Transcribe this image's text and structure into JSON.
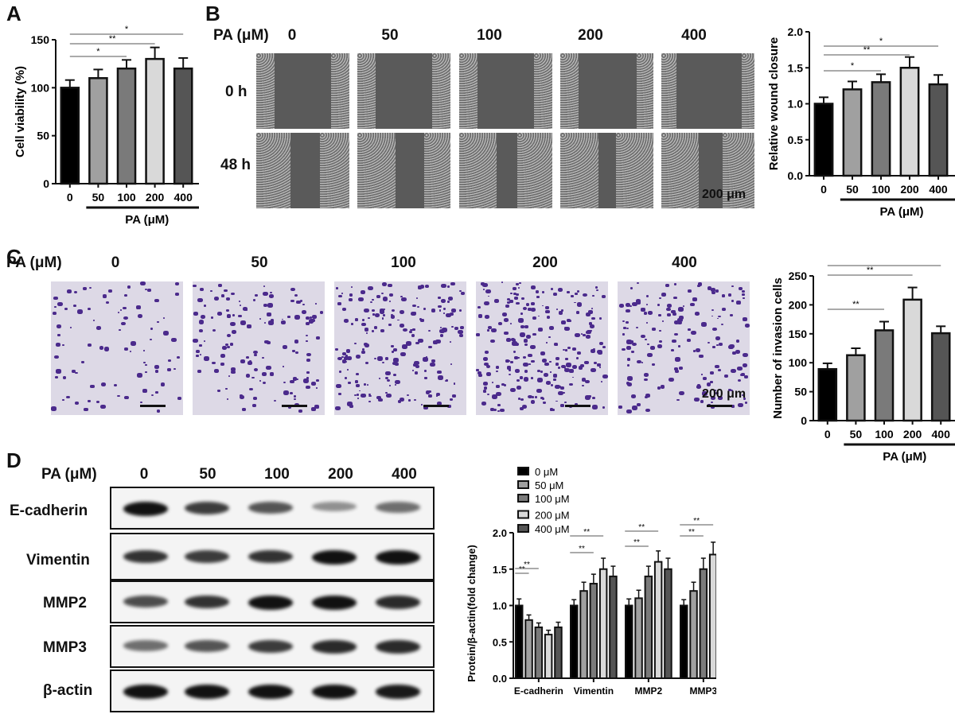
{
  "panels": {
    "A": {
      "label": "A"
    },
    "B": {
      "label": "B",
      "header": "PA (μM)",
      "concentrations": [
        "0",
        "50",
        "100",
        "200",
        "400"
      ],
      "rows": [
        "0 h",
        "48 h"
      ],
      "scale_bar": "200 μm"
    },
    "C": {
      "label": "C",
      "header": "PA (μM)",
      "concentrations": [
        "0",
        "50",
        "100",
        "200",
        "400"
      ],
      "scale_bar": "200 μm"
    },
    "D": {
      "label": "D",
      "header": "PA (μM)",
      "concentrations": [
        "0",
        "50",
        "100",
        "200",
        "400"
      ],
      "blot_rows": [
        "E-cadherin",
        "Vimentin",
        "MMP2",
        "MMP3",
        "β-actin"
      ]
    }
  },
  "chart_data": [
    {
      "id": "A",
      "type": "bar",
      "title": "",
      "categories": [
        "0",
        "50",
        "100",
        "200",
        "400"
      ],
      "values": [
        100,
        110,
        120,
        130,
        120
      ],
      "errors": [
        8,
        9,
        9,
        12,
        11
      ],
      "xlabel": "PA (μM)",
      "ylabel": "Cell viability (%)",
      "ylim": [
        0,
        150
      ],
      "yticks": [
        "0",
        "50",
        "100",
        "150"
      ],
      "bar_colors": [
        "#000000",
        "#a0a0a0",
        "#7a7a7a",
        "#d9d9d9",
        "#555555"
      ],
      "significance": [
        {
          "from": "0",
          "to": "100",
          "label": "*"
        },
        {
          "from": "0",
          "to": "200",
          "label": "**"
        },
        {
          "from": "0",
          "to": "400",
          "label": "*"
        }
      ]
    },
    {
      "id": "B",
      "type": "bar",
      "categories": [
        "0",
        "50",
        "100",
        "200",
        "400"
      ],
      "values": [
        1.0,
        1.2,
        1.3,
        1.5,
        1.27
      ],
      "errors": [
        0.09,
        0.11,
        0.11,
        0.15,
        0.13
      ],
      "xlabel": "PA (μM)",
      "ylabel": "Relative wound closure",
      "ylim": [
        0,
        2.0
      ],
      "yticks": [
        "0.0",
        "0.5",
        "1.0",
        "1.5",
        "2.0"
      ],
      "bar_colors": [
        "#000000",
        "#a0a0a0",
        "#7a7a7a",
        "#d9d9d9",
        "#555555"
      ],
      "significance": [
        {
          "from": "0",
          "to": "100",
          "label": "*"
        },
        {
          "from": "0",
          "to": "200",
          "label": "**"
        },
        {
          "from": "0",
          "to": "400",
          "label": "*"
        }
      ]
    },
    {
      "id": "C",
      "type": "bar",
      "categories": [
        "0",
        "50",
        "100",
        "200",
        "400"
      ],
      "values": [
        89,
        113,
        156,
        209,
        151
      ],
      "errors": [
        10,
        12,
        15,
        21,
        12
      ],
      "xlabel": "PA (μM)",
      "ylabel": "Number of invasion cells",
      "ylim": [
        0,
        250
      ],
      "yticks": [
        "0",
        "50",
        "100",
        "150",
        "200",
        "250"
      ],
      "bar_colors": [
        "#000000",
        "#a0a0a0",
        "#7a7a7a",
        "#d9d9d9",
        "#555555"
      ],
      "significance": [
        {
          "from": "0",
          "to": "100",
          "label": "**"
        },
        {
          "from": "0",
          "to": "200",
          "label": "**"
        },
        {
          "from": "0",
          "to": "400",
          "label": "**"
        }
      ]
    },
    {
      "id": "D",
      "type": "bar",
      "categories": [
        "E-cadherin",
        "Vimentin",
        "MMP2",
        "MMP3"
      ],
      "series": [
        {
          "name": "0 μM",
          "color": "#000000",
          "values": [
            1.0,
            1.0,
            1.0,
            1.0
          ],
          "errors": [
            0.09,
            0.08,
            0.09,
            0.08
          ]
        },
        {
          "name": "50 μM",
          "color": "#a0a0a0",
          "values": [
            0.8,
            1.2,
            1.1,
            1.2
          ],
          "errors": [
            0.07,
            0.12,
            0.11,
            0.12
          ]
        },
        {
          "name": "100 μM",
          "color": "#7a7a7a",
          "values": [
            0.7,
            1.3,
            1.4,
            1.5
          ],
          "errors": [
            0.06,
            0.13,
            0.14,
            0.15
          ]
        },
        {
          "name": "200 μM",
          "color": "#d9d9d9",
          "values": [
            0.6,
            1.5,
            1.6,
            1.7
          ],
          "errors": [
            0.06,
            0.15,
            0.15,
            0.17
          ]
        },
        {
          "name": "400 μM",
          "color": "#555555",
          "values": [
            0.7,
            1.4,
            1.5,
            1.6
          ],
          "errors": [
            0.07,
            0.14,
            0.15,
            0.15
          ]
        }
      ],
      "xlabel": "",
      "ylabel": "Protein/β-actin(fold change)",
      "ylim": [
        0,
        2.0
      ],
      "yticks": [
        "0.0",
        "0.5",
        "1.0",
        "1.5",
        "2.0"
      ],
      "legend_position": "top-left",
      "significance": [
        {
          "group": "E-cadherin",
          "from": "0 μM",
          "to": "50 μM",
          "label": "**"
        },
        {
          "group": "E-cadherin",
          "from": "0 μM",
          "to": "100 μM",
          "label": "**"
        },
        {
          "group": "Vimentin",
          "from": "0 μM",
          "to": "100 μM",
          "label": "**"
        },
        {
          "group": "Vimentin",
          "from": "0 μM",
          "to": "200 μM",
          "label": "**"
        },
        {
          "group": "MMP2",
          "from": "0 μM",
          "to": "100 μM",
          "label": "**"
        },
        {
          "group": "MMP2",
          "from": "0 μM",
          "to": "200 μM",
          "label": "**"
        },
        {
          "group": "MMP3",
          "from": "0 μM",
          "to": "100 μM",
          "label": "**"
        },
        {
          "group": "MMP3",
          "from": "0 μM",
          "to": "200 μM",
          "label": "**"
        }
      ]
    }
  ]
}
